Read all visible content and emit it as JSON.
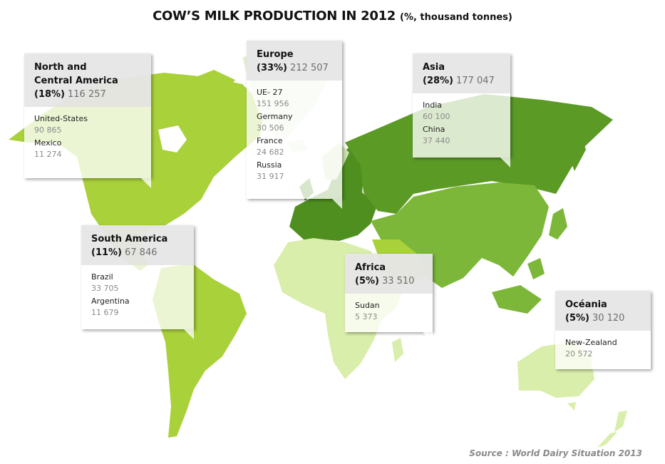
{
  "title": {
    "main": "COW’S MILK PRODUCTION IN 2012",
    "sub": "(%, thousand tonnes)"
  },
  "source": "Source : World Dairy Situation 2013",
  "colors": {
    "north_america": "#a9d13a",
    "south_america": "#a9d13a",
    "europe": "#4f8f1f",
    "russia": "#5c9a26",
    "asia": "#7cb739",
    "africa": "#d8eeaa",
    "oceania": "#d8eeaa",
    "greenland": "#e5f0d8"
  },
  "regions": [
    {
      "key": "north_america",
      "name": "North and Central America",
      "pct": "(18%)",
      "amount": "116 257",
      "items": [
        {
          "name": "United-States",
          "value": "90 865"
        },
        {
          "name": "Mexico",
          "value": "11 274"
        }
      ]
    },
    {
      "key": "europe",
      "name": "Europe",
      "pct": "(33%)",
      "amount": "212 507",
      "items": [
        {
          "name": "UE- 27",
          "value": "151 956"
        },
        {
          "name": "Germany",
          "value": "30 506"
        },
        {
          "name": "France",
          "value": "24 682"
        },
        {
          "name": "Russia",
          "value": "31 917"
        }
      ]
    },
    {
      "key": "asia",
      "name": "Asia",
      "pct": "(28%)",
      "amount": "177 047",
      "items": [
        {
          "name": "India",
          "value": "60 100"
        },
        {
          "name": "China",
          "value": "37 440"
        }
      ]
    },
    {
      "key": "south_america",
      "name": "South America",
      "pct": "(11%)",
      "amount": "67 846",
      "items": [
        {
          "name": "Brazil",
          "value": "33 705"
        },
        {
          "name": "Argentina",
          "value": "11 679"
        }
      ]
    },
    {
      "key": "africa",
      "name": "Africa",
      "pct": "(5%)",
      "amount": "33 510",
      "items": [
        {
          "name": "Sudan",
          "value": "5 373"
        }
      ]
    },
    {
      "key": "oceania",
      "name": "Océania",
      "pct": "(5%)",
      "amount": "30 120",
      "items": [
        {
          "name": "New-Zealand",
          "value": "20 572"
        }
      ]
    }
  ]
}
